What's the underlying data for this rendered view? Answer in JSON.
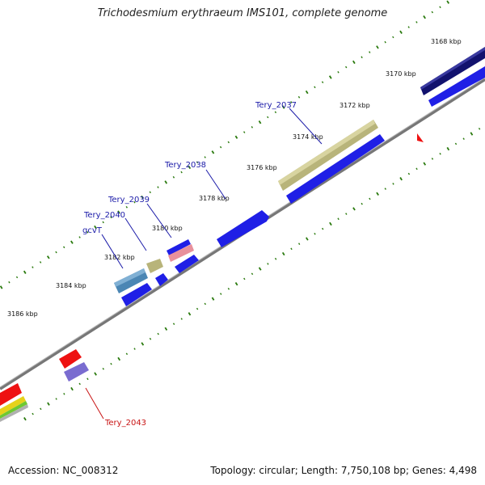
{
  "title": "Trichodesmium erythraeum IMS101, complete genome",
  "footer": {
    "accession": "Accession: NC_008312",
    "topology": "Topology: circular; Length: 7,750,108 bp; Genes: 4,498"
  },
  "colors": {
    "backbone": "#777777",
    "tick": "#2a7a0e",
    "label_blue": "#1a1aa8",
    "label_red": "#c81414",
    "forward_gene": "#1f1fe6",
    "dark_gene": "#12126e",
    "khaki_gene": "#b8b47a",
    "steel_gene": "#4b86b4",
    "red_gene": "#ee1111",
    "purple_gene": "#7a6cd0",
    "pink_gene": "#e8909c"
  },
  "scale_labels": [
    "3168 kbp",
    "3170 kbp",
    "3172 kbp",
    "3174 kbp",
    "3176 kbp",
    "3178 kbp",
    "3180 kbp",
    "3182 kbp",
    "3184 kbp",
    "3186 kbp"
  ],
  "gene_labels": [
    "Tery_2037",
    "Tery_2038",
    "Tery_2039",
    "Tery_2040",
    "gcvT",
    "Tery_2043"
  ]
}
